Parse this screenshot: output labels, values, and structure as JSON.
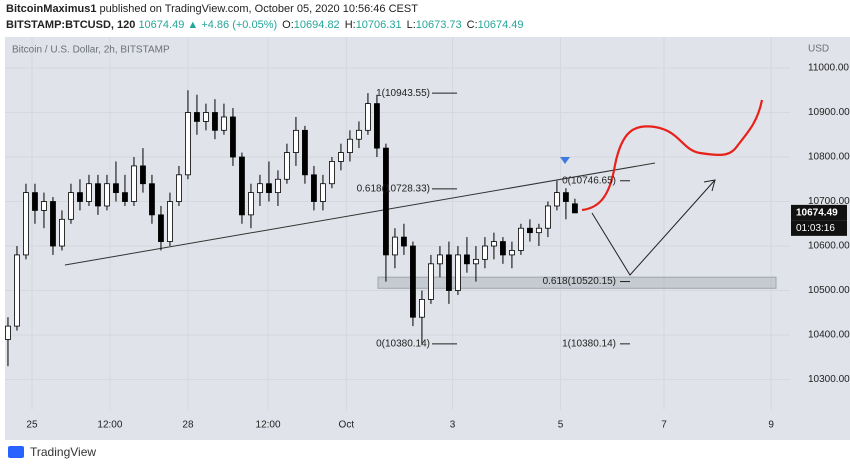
{
  "header": {
    "author": "BitcoinMaximus1",
    "published": "published on TradingView.com, October 05, 2020 10:56:46 CEST",
    "symbol": "BITSTAMP:BTCUSD, 120",
    "last": "10674.49",
    "change": "▲ +4.86 (+0.05%)",
    "ohlc": [
      {
        "label": "O:",
        "value": "10694.82"
      },
      {
        "label": "H:",
        "value": "10706.31"
      },
      {
        "label": "L:",
        "value": "10673.73"
      },
      {
        "label": "C:",
        "value": "10674.49"
      }
    ]
  },
  "footer": {
    "brand": "TradingView"
  },
  "chart_data": {
    "type": "candlestick",
    "title": "Bitcoin / U.S. Dollar, 2h, BITSTAMP",
    "axis_unit": "USD",
    "x": [
      0,
      1,
      2,
      3,
      4,
      5,
      6,
      7,
      8,
      9,
      10,
      11,
      12,
      13,
      14,
      15,
      16,
      17,
      18,
      19,
      20,
      21,
      22,
      23,
      24,
      25,
      26,
      27,
      28,
      29,
      30,
      31,
      32,
      33,
      34,
      35,
      36,
      37,
      38,
      39,
      40,
      41,
      42,
      43,
      44,
      45,
      46,
      47,
      48,
      49,
      50,
      51,
      52,
      53,
      54,
      55,
      56,
      57,
      58,
      59,
      60,
      61,
      62,
      63
    ],
    "open": [
      10390,
      10420,
      10580,
      10720,
      10680,
      10700,
      10600,
      10660,
      10720,
      10700,
      10740,
      10690,
      10740,
      10720,
      10700,
      10780,
      10740,
      10670,
      10610,
      10700,
      10760,
      10900,
      10880,
      10900,
      10860,
      10890,
      10800,
      10670,
      10720,
      10740,
      10720,
      10750,
      10810,
      10860,
      10760,
      10700,
      10740,
      10790,
      10810,
      10840,
      10860,
      10920,
      10820,
      10580,
      10620,
      10600,
      10440,
      10480,
      10560,
      10580,
      10500,
      10580,
      10560,
      10570,
      10600,
      10610,
      10580,
      10590,
      10640,
      10630,
      10640,
      10690,
      10720,
      10694.82
    ],
    "high": [
      10440,
      10600,
      10740,
      10740,
      10720,
      10710,
      10680,
      10740,
      10750,
      10760,
      10760,
      10760,
      10790,
      10760,
      10800,
      10820,
      10760,
      10690,
      10720,
      10780,
      10950,
      10940,
      10920,
      10930,
      10920,
      10910,
      10810,
      10740,
      10760,
      10790,
      10770,
      10830,
      10890,
      10870,
      10780,
      10760,
      10800,
      10830,
      10860,
      10880,
      10943.55,
      10940,
      10830,
      10640,
      10650,
      10610,
      10500,
      10580,
      10600,
      10610,
      10600,
      10620,
      10600,
      10620,
      10630,
      10620,
      10610,
      10650,
      10660,
      10650,
      10700,
      10746.65,
      10730,
      10706.31
    ],
    "low": [
      10330,
      10410,
      10570,
      10650,
      10640,
      10580,
      10590,
      10650,
      10680,
      10690,
      10670,
      10680,
      10700,
      10690,
      10690,
      10720,
      10650,
      10590,
      10600,
      10690,
      10750,
      10850,
      10860,
      10840,
      10850,
      10780,
      10650,
      10640,
      10690,
      10700,
      10690,
      10740,
      10780,
      10740,
      10680,
      10680,
      10730,
      10770,
      10790,
      10820,
      10850,
      10800,
      10520,
      10550,
      10580,
      10420,
      10380.14,
      10470,
      10530,
      10470,
      10490,
      10540,
      10520,
      10550,
      10570,
      10560,
      10550,
      10580,
      10610,
      10600,
      10620,
      10680,
      10660,
      10673.73
    ],
    "close": [
      10420,
      10580,
      10720,
      10680,
      10700,
      10600,
      10660,
      10720,
      10700,
      10740,
      10690,
      10740,
      10720,
      10700,
      10780,
      10740,
      10670,
      10610,
      10700,
      10760,
      10900,
      10880,
      10900,
      10860,
      10890,
      10800,
      10670,
      10720,
      10740,
      10720,
      10750,
      10810,
      10860,
      10760,
      10700,
      10740,
      10790,
      10810,
      10840,
      10860,
      10920,
      10820,
      10580,
      10620,
      10600,
      10440,
      10480,
      10560,
      10580,
      10500,
      10580,
      10560,
      10570,
      10600,
      10610,
      10580,
      10590,
      10640,
      10630,
      10640,
      10690,
      10720,
      10700,
      10674.49
    ],
    "up_color": "#ffffff",
    "down_color": "#000000",
    "wick_color": "#000000",
    "xlim": [
      -0.33,
      86.9
    ],
    "ylim": [
      10231.5,
      11069.7
    ],
    "xticks": [
      {
        "value": 2.67,
        "label": "25"
      },
      {
        "value": 11.33,
        "label": "12:00"
      },
      {
        "value": 20,
        "label": "28"
      },
      {
        "value": 28.9,
        "label": "12:00"
      },
      {
        "value": 37.6,
        "label": "Oct"
      },
      {
        "value": 49.4,
        "label": "3"
      },
      {
        "value": 61.4,
        "label": "5"
      },
      {
        "value": 72.9,
        "label": "7"
      },
      {
        "value": 84.8,
        "label": "9"
      }
    ],
    "yticks": [
      {
        "value": 10300,
        "label": "10300.00"
      },
      {
        "value": 10400,
        "label": "10400.00"
      },
      {
        "value": 10500,
        "label": "10500.00"
      },
      {
        "value": 10600,
        "label": "10600.00"
      },
      {
        "value": 10700,
        "label": "10700.00"
      },
      {
        "value": 10800,
        "label": "10800.00"
      },
      {
        "value": 10900,
        "label": "10900.00"
      },
      {
        "value": 11000,
        "label": "11000.00"
      }
    ],
    "grid": true,
    "price_label": {
      "value": 10674.49,
      "label": "10674.49"
    },
    "countdown": "01:03:16",
    "trendline": {
      "x": [
        6.33,
        71.9
      ],
      "y": [
        10557.3,
        10786.5
      ]
    },
    "zone": [
      10505,
      10530
    ],
    "fib_levels": [
      {
        "text": "1(10943.55)",
        "value": 10943.55
      },
      {
        "text": "0.618(10728.33)",
        "value": 10728.33
      },
      {
        "text": "0(10380.14)",
        "value": 10380.14
      },
      {
        "text": "0(10746.65)",
        "value": 10746.65
      },
      {
        "text": "0.618(10520.15)",
        "value": 10520.15
      },
      {
        "text": "1(10380.14)",
        "value": 10380.14
      }
    ]
  }
}
